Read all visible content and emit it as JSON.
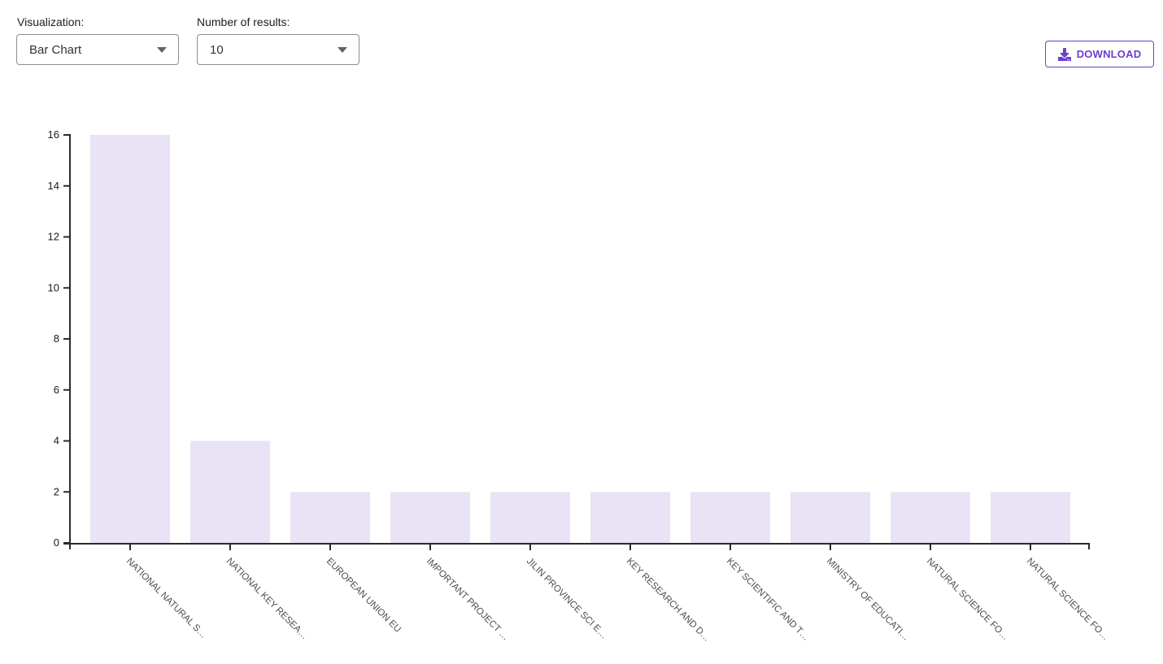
{
  "controls": {
    "visualization": {
      "label": "Visualization:",
      "value": "Bar Chart"
    },
    "results": {
      "label": "Number of results:",
      "value": "10"
    }
  },
  "toolbar": {
    "download_label": "DOWNLOAD"
  },
  "icons": {
    "download_icon": "arrow-down-into-tray",
    "dropdown_caret_icon": "triangle-down"
  },
  "theme": {
    "accent": "#6e3ecd",
    "control_border": "#8e8e8e",
    "bar_fill": "#e9e3f5",
    "axis_color": "#2b2b2b",
    "ytick_label_color": "#1a1a1a",
    "category_label_color": "#4d4d4d"
  },
  "chart_data": {
    "type": "bar",
    "categories": [
      "NATIONAL NATURAL S…",
      "NATIONAL KEY RESEA…",
      "EUROPEAN UNION EU",
      "IMPORTANT PROJECT …",
      "JILIN PROVINCE SCI E…",
      "KEY RESEARCH AND D…",
      "KEY SCIENTIFIC AND T…",
      "MINISTRY OF EDUCATI…",
      "NATURAL SCIENCE FO…",
      "NATURAL SCIENCE FO…"
    ],
    "values": [
      16,
      4,
      2,
      2,
      2,
      2,
      2,
      2,
      2,
      2
    ],
    "ylim": [
      0,
      16
    ],
    "ytick_step": 2,
    "xtick_rotation_deg": 45,
    "grid": false,
    "legend": false
  }
}
